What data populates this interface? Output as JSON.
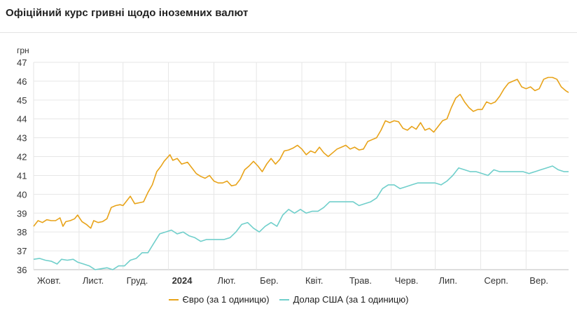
{
  "header": {
    "title": "Офіційний курс гривні щодо іноземних валют"
  },
  "colors": {
    "euro": "#e8a319",
    "usd": "#70cfcb",
    "grid": "#e6e6e6"
  },
  "chart_data": {
    "type": "line",
    "title": "Офіційний курс гривні щодо іноземних валют",
    "ylabel": "грн",
    "ylim": [
      36,
      47
    ],
    "yticks": [
      36,
      37,
      38,
      39,
      40,
      41,
      42,
      43,
      44,
      45,
      46,
      47
    ],
    "xlim": [
      "2023-10-01",
      "2024-09-30"
    ],
    "xticks": [
      {
        "date": "2023-10-01",
        "label": "Жовт."
      },
      {
        "date": "2023-11-01",
        "label": "Лист."
      },
      {
        "date": "2023-12-01",
        "label": "Груд."
      },
      {
        "date": "2024-01-01",
        "label": "2024"
      },
      {
        "date": "2024-02-01",
        "label": "Лют."
      },
      {
        "date": "2024-03-01",
        "label": "Бер."
      },
      {
        "date": "2024-04-01",
        "label": "Квіт."
      },
      {
        "date": "2024-05-01",
        "label": "Трав."
      },
      {
        "date": "2024-06-01",
        "label": "Черв."
      },
      {
        "date": "2024-07-01",
        "label": "Лип."
      },
      {
        "date": "2024-08-01",
        "label": "Серп."
      },
      {
        "date": "2024-09-01",
        "label": "Вер."
      }
    ],
    "grid": true,
    "legend_position": "bottom",
    "series": [
      {
        "name": "Євро (за 1 одиницю)",
        "points": [
          [
            "2023-10-01",
            38.3
          ],
          [
            "2023-10-04",
            38.6
          ],
          [
            "2023-10-07",
            38.5
          ],
          [
            "2023-10-10",
            38.65
          ],
          [
            "2023-10-13",
            38.6
          ],
          [
            "2023-10-16",
            38.6
          ],
          [
            "2023-10-19",
            38.75
          ],
          [
            "2023-10-21",
            38.3
          ],
          [
            "2023-10-23",
            38.55
          ],
          [
            "2023-10-26",
            38.6
          ],
          [
            "2023-10-29",
            38.7
          ],
          [
            "2023-10-31",
            38.9
          ],
          [
            "2023-11-03",
            38.55
          ],
          [
            "2023-11-06",
            38.4
          ],
          [
            "2023-11-09",
            38.2
          ],
          [
            "2023-11-11",
            38.6
          ],
          [
            "2023-11-14",
            38.5
          ],
          [
            "2023-11-17",
            38.55
          ],
          [
            "2023-11-20",
            38.7
          ],
          [
            "2023-11-23",
            39.3
          ],
          [
            "2023-11-26",
            39.4
          ],
          [
            "2023-11-29",
            39.45
          ],
          [
            "2023-12-01",
            39.4
          ],
          [
            "2023-12-04",
            39.7
          ],
          [
            "2023-12-06",
            39.9
          ],
          [
            "2023-12-09",
            39.5
          ],
          [
            "2023-12-12",
            39.55
          ],
          [
            "2023-12-15",
            39.6
          ],
          [
            "2023-12-18",
            40.1
          ],
          [
            "2023-12-21",
            40.5
          ],
          [
            "2023-12-24",
            41.2
          ],
          [
            "2023-12-27",
            41.5
          ],
          [
            "2023-12-29",
            41.75
          ],
          [
            "2024-01-02",
            42.1
          ],
          [
            "2024-01-04",
            41.8
          ],
          [
            "2024-01-07",
            41.9
          ],
          [
            "2024-01-10",
            41.6
          ],
          [
            "2024-01-14",
            41.7
          ],
          [
            "2024-01-17",
            41.4
          ],
          [
            "2024-01-20",
            41.1
          ],
          [
            "2024-01-23",
            40.95
          ],
          [
            "2024-01-26",
            40.85
          ],
          [
            "2024-01-29",
            41.0
          ],
          [
            "2024-02-01",
            40.7
          ],
          [
            "2024-02-04",
            40.6
          ],
          [
            "2024-02-07",
            40.6
          ],
          [
            "2024-02-10",
            40.7
          ],
          [
            "2024-02-13",
            40.45
          ],
          [
            "2024-02-16",
            40.5
          ],
          [
            "2024-02-19",
            40.8
          ],
          [
            "2024-02-22",
            41.3
          ],
          [
            "2024-02-25",
            41.5
          ],
          [
            "2024-02-28",
            41.75
          ],
          [
            "2024-03-02",
            41.5
          ],
          [
            "2024-03-05",
            41.2
          ],
          [
            "2024-03-08",
            41.6
          ],
          [
            "2024-03-11",
            41.9
          ],
          [
            "2024-03-14",
            41.6
          ],
          [
            "2024-03-17",
            41.85
          ],
          [
            "2024-03-20",
            42.3
          ],
          [
            "2024-03-23",
            42.35
          ],
          [
            "2024-03-26",
            42.45
          ],
          [
            "2024-03-29",
            42.6
          ],
          [
            "2024-04-01",
            42.4
          ],
          [
            "2024-04-04",
            42.1
          ],
          [
            "2024-04-07",
            42.3
          ],
          [
            "2024-04-10",
            42.2
          ],
          [
            "2024-04-13",
            42.5
          ],
          [
            "2024-04-16",
            42.2
          ],
          [
            "2024-04-19",
            42.0
          ],
          [
            "2024-04-22",
            42.2
          ],
          [
            "2024-04-25",
            42.4
          ],
          [
            "2024-04-28",
            42.5
          ],
          [
            "2024-05-01",
            42.6
          ],
          [
            "2024-05-04",
            42.4
          ],
          [
            "2024-05-07",
            42.5
          ],
          [
            "2024-05-10",
            42.35
          ],
          [
            "2024-05-13",
            42.4
          ],
          [
            "2024-05-16",
            42.8
          ],
          [
            "2024-05-19",
            42.9
          ],
          [
            "2024-05-22",
            43.0
          ],
          [
            "2024-05-25",
            43.4
          ],
          [
            "2024-05-28",
            43.9
          ],
          [
            "2024-05-31",
            43.8
          ],
          [
            "2024-06-03",
            43.9
          ],
          [
            "2024-06-06",
            43.85
          ],
          [
            "2024-06-09",
            43.5
          ],
          [
            "2024-06-12",
            43.4
          ],
          [
            "2024-06-15",
            43.6
          ],
          [
            "2024-06-18",
            43.45
          ],
          [
            "2024-06-21",
            43.8
          ],
          [
            "2024-06-24",
            43.4
          ],
          [
            "2024-06-27",
            43.5
          ],
          [
            "2024-06-30",
            43.3
          ],
          [
            "2024-07-03",
            43.6
          ],
          [
            "2024-07-06",
            43.9
          ],
          [
            "2024-07-09",
            44.0
          ],
          [
            "2024-07-12",
            44.6
          ],
          [
            "2024-07-15",
            45.1
          ],
          [
            "2024-07-18",
            45.3
          ],
          [
            "2024-07-21",
            44.9
          ],
          [
            "2024-07-24",
            44.6
          ],
          [
            "2024-07-27",
            44.4
          ],
          [
            "2024-07-30",
            44.5
          ],
          [
            "2024-08-02",
            44.5
          ],
          [
            "2024-08-05",
            44.9
          ],
          [
            "2024-08-08",
            44.8
          ],
          [
            "2024-08-11",
            44.9
          ],
          [
            "2024-08-14",
            45.2
          ],
          [
            "2024-08-17",
            45.6
          ],
          [
            "2024-08-20",
            45.9
          ],
          [
            "2024-08-23",
            46.0
          ],
          [
            "2024-08-26",
            46.1
          ],
          [
            "2024-08-29",
            45.7
          ],
          [
            "2024-09-01",
            45.6
          ],
          [
            "2024-09-04",
            45.7
          ],
          [
            "2024-09-07",
            45.5
          ],
          [
            "2024-09-10",
            45.6
          ],
          [
            "2024-09-13",
            46.1
          ],
          [
            "2024-09-16",
            46.2
          ],
          [
            "2024-09-19",
            46.2
          ],
          [
            "2024-09-22",
            46.1
          ],
          [
            "2024-09-25",
            45.7
          ],
          [
            "2024-09-28",
            45.5
          ],
          [
            "2024-09-30",
            45.4
          ]
        ]
      },
      {
        "name": "Долар США (за 1 одиницю)",
        "points": [
          [
            "2023-10-01",
            36.55
          ],
          [
            "2023-10-05",
            36.6
          ],
          [
            "2023-10-09",
            36.5
          ],
          [
            "2023-10-13",
            36.45
          ],
          [
            "2023-10-17",
            36.3
          ],
          [
            "2023-10-20",
            36.55
          ],
          [
            "2023-10-24",
            36.5
          ],
          [
            "2023-10-28",
            36.55
          ],
          [
            "2023-10-31",
            36.4
          ],
          [
            "2023-11-04",
            36.3
          ],
          [
            "2023-11-08",
            36.2
          ],
          [
            "2023-11-12",
            36.0
          ],
          [
            "2023-11-16",
            36.05
          ],
          [
            "2023-11-20",
            36.1
          ],
          [
            "2023-11-24",
            36.0
          ],
          [
            "2023-11-28",
            36.2
          ],
          [
            "2023-12-02",
            36.2
          ],
          [
            "2023-12-06",
            36.5
          ],
          [
            "2023-12-10",
            36.6
          ],
          [
            "2023-12-14",
            36.9
          ],
          [
            "2023-12-18",
            36.9
          ],
          [
            "2023-12-22",
            37.4
          ],
          [
            "2023-12-26",
            37.9
          ],
          [
            "2023-12-30",
            38.0
          ],
          [
            "2024-01-03",
            38.1
          ],
          [
            "2024-01-07",
            37.9
          ],
          [
            "2024-01-11",
            38.0
          ],
          [
            "2024-01-15",
            37.8
          ],
          [
            "2024-01-19",
            37.7
          ],
          [
            "2024-01-23",
            37.5
          ],
          [
            "2024-01-27",
            37.6
          ],
          [
            "2024-01-31",
            37.6
          ],
          [
            "2024-02-04",
            37.6
          ],
          [
            "2024-02-08",
            37.6
          ],
          [
            "2024-02-12",
            37.7
          ],
          [
            "2024-02-16",
            38.0
          ],
          [
            "2024-02-20",
            38.4
          ],
          [
            "2024-02-24",
            38.5
          ],
          [
            "2024-02-28",
            38.2
          ],
          [
            "2024-03-03",
            38.0
          ],
          [
            "2024-03-07",
            38.3
          ],
          [
            "2024-03-11",
            38.5
          ],
          [
            "2024-03-15",
            38.3
          ],
          [
            "2024-03-19",
            38.9
          ],
          [
            "2024-03-23",
            39.2
          ],
          [
            "2024-03-27",
            39.0
          ],
          [
            "2024-03-31",
            39.2
          ],
          [
            "2024-04-04",
            39.0
          ],
          [
            "2024-04-08",
            39.1
          ],
          [
            "2024-04-12",
            39.1
          ],
          [
            "2024-04-16",
            39.3
          ],
          [
            "2024-04-20",
            39.6
          ],
          [
            "2024-04-24",
            39.6
          ],
          [
            "2024-04-28",
            39.6
          ],
          [
            "2024-05-02",
            39.6
          ],
          [
            "2024-05-06",
            39.6
          ],
          [
            "2024-05-10",
            39.4
          ],
          [
            "2024-05-14",
            39.5
          ],
          [
            "2024-05-18",
            39.6
          ],
          [
            "2024-05-22",
            39.8
          ],
          [
            "2024-05-26",
            40.3
          ],
          [
            "2024-05-30",
            40.5
          ],
          [
            "2024-06-03",
            40.5
          ],
          [
            "2024-06-07",
            40.3
          ],
          [
            "2024-06-11",
            40.4
          ],
          [
            "2024-06-15",
            40.5
          ],
          [
            "2024-06-19",
            40.6
          ],
          [
            "2024-06-23",
            40.6
          ],
          [
            "2024-06-27",
            40.6
          ],
          [
            "2024-07-01",
            40.6
          ],
          [
            "2024-07-05",
            40.5
          ],
          [
            "2024-07-09",
            40.7
          ],
          [
            "2024-07-13",
            41.0
          ],
          [
            "2024-07-17",
            41.4
          ],
          [
            "2024-07-21",
            41.3
          ],
          [
            "2024-07-25",
            41.2
          ],
          [
            "2024-07-29",
            41.2
          ],
          [
            "2024-08-02",
            41.1
          ],
          [
            "2024-08-06",
            41.0
          ],
          [
            "2024-08-10",
            41.3
          ],
          [
            "2024-08-14",
            41.2
          ],
          [
            "2024-08-18",
            41.2
          ],
          [
            "2024-08-22",
            41.2
          ],
          [
            "2024-08-26",
            41.2
          ],
          [
            "2024-08-30",
            41.2
          ],
          [
            "2024-09-03",
            41.1
          ],
          [
            "2024-09-07",
            41.2
          ],
          [
            "2024-09-11",
            41.3
          ],
          [
            "2024-09-15",
            41.4
          ],
          [
            "2024-09-19",
            41.5
          ],
          [
            "2024-09-23",
            41.3
          ],
          [
            "2024-09-27",
            41.2
          ],
          [
            "2024-09-30",
            41.2
          ]
        ]
      }
    ]
  }
}
